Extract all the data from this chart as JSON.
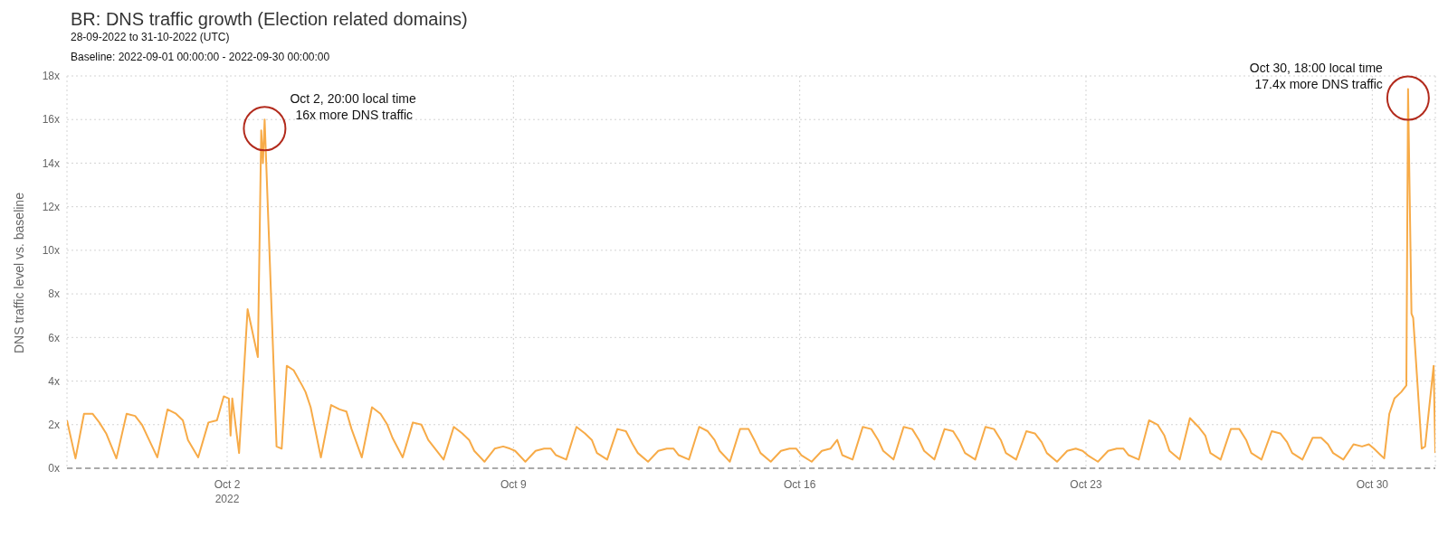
{
  "chart_data": {
    "type": "line",
    "title": "BR: DNS traffic growth (Election related domains)",
    "subtitle": "28-09-2022 to 31-10-2022 (UTC)",
    "ylabel": "DNS traffic level vs. baseline",
    "x": [
      "2022-09-28T02:00",
      "2022-09-28T07:00",
      "2022-09-28T12:00",
      "2022-09-28T17:00",
      "2022-09-28T21:00",
      "2022-09-29T01:00",
      "2022-09-29T07:00",
      "2022-09-29T13:00",
      "2022-09-29T18:00",
      "2022-09-29T22:00",
      "2022-09-30T01:00",
      "2022-09-30T07:00",
      "2022-09-30T13:00",
      "2022-09-30T18:00",
      "2022-09-30T22:00",
      "2022-10-01T01:00",
      "2022-10-01T07:00",
      "2022-10-01T13:00",
      "2022-10-01T18:00",
      "2022-10-01T22:00",
      "2022-10-02T01:00",
      "2022-10-02T02:00",
      "2022-10-02T03:00",
      "2022-10-02T07:00",
      "2022-10-02T12:00",
      "2022-10-02T18:00",
      "2022-10-02T20:00",
      "2022-10-02T21:00",
      "2022-10-02T22:00",
      "2022-10-03T05:00",
      "2022-10-03T08:00",
      "2022-10-03T11:00",
      "2022-10-03T15:00",
      "2022-10-03T20:00",
      "2022-10-03T22:00",
      "2022-10-04T01:00",
      "2022-10-04T07:00",
      "2022-10-04T13:00",
      "2022-10-04T18:00",
      "2022-10-04T22:00",
      "2022-10-05T01:00",
      "2022-10-05T07:00",
      "2022-10-05T13:00",
      "2022-10-05T18:00",
      "2022-10-05T22:00",
      "2022-10-06T01:00",
      "2022-10-06T07:00",
      "2022-10-06T13:00",
      "2022-10-06T18:00",
      "2022-10-06T22:00",
      "2022-10-07T01:00",
      "2022-10-07T07:00",
      "2022-10-07T13:00",
      "2022-10-07T18:00",
      "2022-10-07T22:00",
      "2022-10-08T01:00",
      "2022-10-08T07:00",
      "2022-10-08T13:00",
      "2022-10-08T18:00",
      "2022-10-08T22:00",
      "2022-10-09T01:00",
      "2022-10-09T07:00",
      "2022-10-09T13:00",
      "2022-10-09T18:00",
      "2022-10-09T22:00",
      "2022-10-10T01:00",
      "2022-10-10T07:00",
      "2022-10-10T13:00",
      "2022-10-10T18:00",
      "2022-10-10T22:00",
      "2022-10-11T01:00",
      "2022-10-11T07:00",
      "2022-10-11T13:00",
      "2022-10-11T18:00",
      "2022-10-11T22:00",
      "2022-10-12T01:00",
      "2022-10-12T07:00",
      "2022-10-12T13:00",
      "2022-10-12T18:00",
      "2022-10-12T22:00",
      "2022-10-13T01:00",
      "2022-10-13T07:00",
      "2022-10-13T13:00",
      "2022-10-13T18:00",
      "2022-10-13T22:00",
      "2022-10-14T01:00",
      "2022-10-14T07:00",
      "2022-10-14T13:00",
      "2022-10-14T18:00",
      "2022-10-14T22:00",
      "2022-10-15T01:00",
      "2022-10-15T07:00",
      "2022-10-15T13:00",
      "2022-10-15T18:00",
      "2022-10-15T22:00",
      "2022-10-16T01:00",
      "2022-10-16T07:00",
      "2022-10-16T13:00",
      "2022-10-16T18:00",
      "2022-10-16T22:00",
      "2022-10-17T01:00",
      "2022-10-17T07:00",
      "2022-10-17T13:00",
      "2022-10-17T18:00",
      "2022-10-17T22:00",
      "2022-10-18T01:00",
      "2022-10-18T07:00",
      "2022-10-18T13:00",
      "2022-10-18T18:00",
      "2022-10-18T22:00",
      "2022-10-19T01:00",
      "2022-10-19T07:00",
      "2022-10-19T13:00",
      "2022-10-19T18:00",
      "2022-10-19T22:00",
      "2022-10-20T01:00",
      "2022-10-20T07:00",
      "2022-10-20T13:00",
      "2022-10-20T18:00",
      "2022-10-20T22:00",
      "2022-10-21T01:00",
      "2022-10-21T07:00",
      "2022-10-21T13:00",
      "2022-10-21T18:00",
      "2022-10-21T22:00",
      "2022-10-22T01:00",
      "2022-10-22T07:00",
      "2022-10-22T13:00",
      "2022-10-22T18:00",
      "2022-10-22T22:00",
      "2022-10-23T01:00",
      "2022-10-23T07:00",
      "2022-10-23T13:00",
      "2022-10-23T18:00",
      "2022-10-23T22:00",
      "2022-10-24T01:00",
      "2022-10-24T07:00",
      "2022-10-24T13:00",
      "2022-10-24T18:00",
      "2022-10-24T22:00",
      "2022-10-25T01:00",
      "2022-10-25T07:00",
      "2022-10-25T13:00",
      "2022-10-25T18:00",
      "2022-10-25T22:00",
      "2022-10-26T01:00",
      "2022-10-26T07:00",
      "2022-10-26T13:00",
      "2022-10-26T18:00",
      "2022-10-26T22:00",
      "2022-10-27T01:00",
      "2022-10-27T07:00",
      "2022-10-27T13:00",
      "2022-10-27T18:00",
      "2022-10-27T22:00",
      "2022-10-28T01:00",
      "2022-10-28T07:00",
      "2022-10-28T13:00",
      "2022-10-28T18:00",
      "2022-10-28T22:00",
      "2022-10-29T01:00",
      "2022-10-29T07:00",
      "2022-10-29T13:00",
      "2022-10-29T18:00",
      "2022-10-29T22:00",
      "2022-10-30T01:00",
      "2022-10-30T07:00",
      "2022-10-30T10:00",
      "2022-10-30T13:00",
      "2022-10-30T17:00",
      "2022-10-30T20:00",
      "2022-10-30T21:00",
      "2022-10-30T23:00",
      "2022-10-31T00:00",
      "2022-10-31T05:00",
      "2022-10-31T07:00",
      "2022-10-31T12:00",
      "2022-10-31T13:00"
    ],
    "series": [
      {
        "color": "#f7ab48",
        "values": [
          2.2,
          0.45,
          2.5,
          2.5,
          2.1,
          1.6,
          0.45,
          2.5,
          2.4,
          2.0,
          1.5,
          0.5,
          2.7,
          2.5,
          2.2,
          1.3,
          0.5,
          2.1,
          2.2,
          3.3,
          3.2,
          1.5,
          3.2,
          0.7,
          7.3,
          5.1,
          15.5,
          14,
          16,
          1,
          0.9,
          4.7,
          4.5,
          3.8,
          3.5,
          2.8,
          0.5,
          2.9,
          2.7,
          2.6,
          1.8,
          0.5,
          2.8,
          2.5,
          2,
          1.4,
          0.5,
          2.1,
          2,
          1.3,
          1,
          0.4,
          1.9,
          1.6,
          1.3,
          0.8,
          0.3,
          0.9,
          1,
          0.9,
          0.8,
          0.3,
          0.8,
          0.9,
          0.9,
          0.6,
          0.4,
          1.9,
          1.6,
          1.3,
          0.7,
          0.4,
          1.8,
          1.7,
          1.1,
          0.7,
          0.3,
          0.8,
          0.9,
          0.9,
          0.6,
          0.4,
          1.9,
          1.7,
          1.3,
          0.8,
          0.3,
          1.8,
          1.8,
          1.2,
          0.7,
          0.3,
          0.8,
          0.9,
          0.9,
          0.6,
          0.3,
          0.8,
          0.9,
          1.3,
          0.6,
          0.4,
          1.9,
          1.8,
          1.3,
          0.8,
          0.4,
          1.9,
          1.8,
          1.3,
          0.8,
          0.4,
          1.8,
          1.7,
          1.2,
          0.7,
          0.4,
          1.9,
          1.8,
          1.3,
          0.7,
          0.4,
          1.7,
          1.6,
          1.2,
          0.7,
          0.3,
          0.8,
          0.9,
          0.8,
          0.6,
          0.3,
          0.8,
          0.9,
          0.9,
          0.6,
          0.4,
          2.2,
          2,
          1.5,
          0.8,
          0.4,
          2.3,
          1.9,
          1.5,
          0.7,
          0.4,
          1.8,
          1.8,
          1.3,
          0.7,
          0.4,
          1.7,
          1.6,
          1.2,
          0.7,
          0.4,
          1.4,
          1.4,
          1.1,
          0.7,
          0.4,
          1.1,
          1,
          1.1,
          0.9,
          0.45,
          2.5,
          3.2,
          3.5,
          3.8,
          17.4,
          7.1,
          6.9,
          0.9,
          1,
          4.7,
          0.7
        ]
      }
    ],
    "xlim": [
      "2022-09-28T02:00",
      "2022-10-31T13:00"
    ],
    "xticks": [
      {
        "value": "2022-10-02",
        "label": "Oct 2\n2022"
      },
      {
        "value": "2022-10-09",
        "label": "Oct 9"
      },
      {
        "value": "2022-10-16",
        "label": "Oct 16"
      },
      {
        "value": "2022-10-23",
        "label": "Oct 23"
      },
      {
        "value": "2022-10-30",
        "label": "Oct 30"
      }
    ],
    "ylim": [
      0,
      18
    ],
    "yticks": [
      {
        "value": 0,
        "label": "0x"
      },
      {
        "value": 2,
        "label": "2x"
      },
      {
        "value": 4,
        "label": "4x"
      },
      {
        "value": 6,
        "label": "6x"
      },
      {
        "value": 8,
        "label": "8x"
      },
      {
        "value": 10,
        "label": "10x"
      },
      {
        "value": 12,
        "label": "12x"
      },
      {
        "value": 14,
        "label": "14x"
      },
      {
        "value": 16,
        "label": "16x"
      },
      {
        "value": 18,
        "label": "18x"
      }
    ],
    "ref_lines": [
      {
        "axis": "y",
        "value": 0,
        "color": "#aaaaaa",
        "line_style": "dashed"
      }
    ],
    "annotations": [
      "Baseline: 2022-09-01 00:00:00 - 2022-09-30 00:00:00",
      {
        "text": "Oct 2, 20:00 local time\n16x more DNS traffic",
        "x": "2022-10-02T22:00",
        "y": 16
      },
      {
        "text": "Oct 30, 18:00 local time\n17.4x more DNS traffic",
        "x": "2022-10-30T21:00",
        "y": 17.4
      }
    ],
    "grid": true,
    "marker": "none",
    "line_style": "solid"
  }
}
